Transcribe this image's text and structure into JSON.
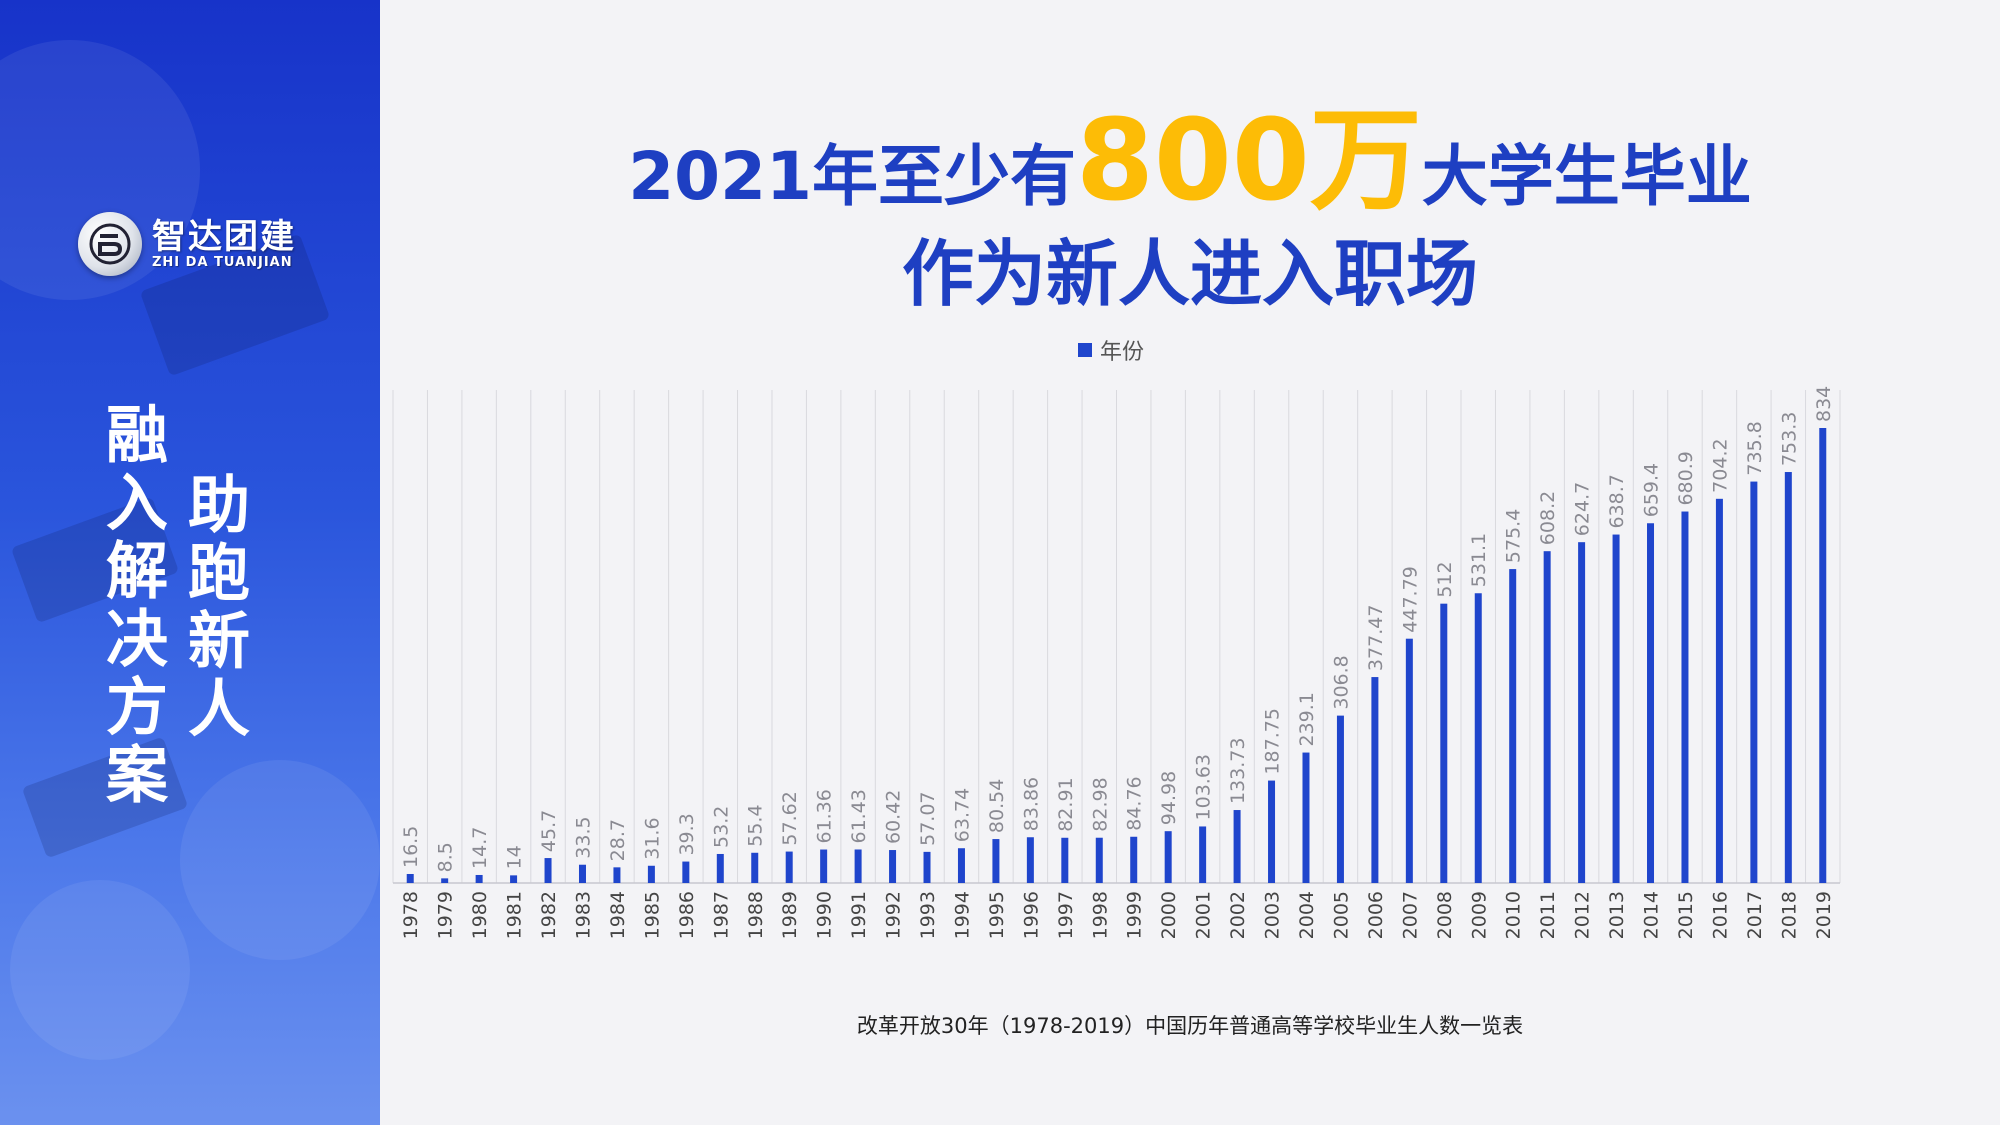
{
  "brand": {
    "name_cn": "智达团建",
    "name_en": "ZHI DA TUANJIAN"
  },
  "sidebar": {
    "slogan_col1": "融入解决方案",
    "slogan_col2": "助跑新人"
  },
  "headline": {
    "line1_prefix": "2021年至少有",
    "line1_highlight": "800万",
    "line1_suffix": "大学生毕业",
    "line2": "作为新人进入职场"
  },
  "caption": "改革开放30年（1978-2019）中国历年普通高等学校毕业生人数一览表",
  "colors": {
    "bar": "#1f45cc",
    "title_blue": "#1e3fc2",
    "highlight_yellow": "#fdbc06",
    "sidebar_blue": "#1733c9"
  },
  "chart_data": {
    "type": "bar",
    "legend": [
      "年份"
    ],
    "legend_position": "top",
    "grid": "vertical",
    "categories": [
      "1978",
      "1979",
      "1980",
      "1981",
      "1982",
      "1983",
      "1984",
      "1985",
      "1986",
      "1987",
      "1988",
      "1989",
      "1990",
      "1991",
      "1992",
      "1993",
      "1994",
      "1995",
      "1996",
      "1997",
      "1998",
      "1999",
      "2000",
      "2001",
      "2002",
      "2003",
      "2004",
      "2005",
      "2006",
      "2007",
      "2008",
      "2009",
      "2010",
      "2011",
      "2012",
      "2013",
      "2014",
      "2015",
      "2016",
      "2017",
      "2018",
      "2019"
    ],
    "series": [
      {
        "name": "年份",
        "values": [
          16.5,
          8.5,
          14.7,
          14,
          45.7,
          33.5,
          28.7,
          31.6,
          39.3,
          53.2,
          55.4,
          57.62,
          61.36,
          61.43,
          60.42,
          57.07,
          63.74,
          80.54,
          83.86,
          82.91,
          82.98,
          84.76,
          94.98,
          103.63,
          133.73,
          187.75,
          239.1,
          306.8,
          377.47,
          447.79,
          512,
          531.1,
          575.4,
          608.2,
          624.7,
          638.7,
          659.4,
          680.9,
          704.2,
          735.8,
          753.3,
          834
        ]
      }
    ],
    "labels": [
      "16.5",
      "8.5",
      "14.7",
      "14",
      "45.7",
      "33.5",
      "28.7",
      "31.6",
      "39.3",
      "53.2",
      "55.4",
      "57.62",
      "61.36",
      "61.43",
      "60.42",
      "57.07",
      "63.74",
      "80.54",
      "83.86",
      "82.91",
      "82.98",
      "84.76",
      "94.98",
      "103.63",
      "133.73",
      "187.75",
      "239.1",
      "306.8",
      "377.47",
      "447.79",
      "512",
      "531.1",
      "575.4",
      "608.2",
      "624.7",
      "638.7",
      "659.4",
      "680.9",
      "704.2",
      "735.8",
      "753.3",
      "834"
    ],
    "ylim": [
      0,
      834
    ]
  }
}
